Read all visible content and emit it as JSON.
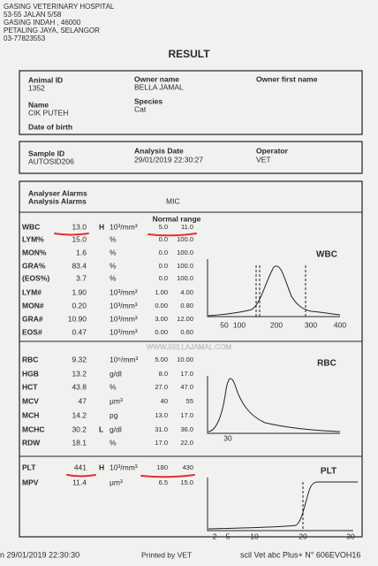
{
  "header": {
    "lines": [
      "GASING VETERINARY HOSPITAL",
      "53-55 JALAN 5/58",
      "GASING INDAH , 46000",
      "PETALING JAYA, SELANGOR",
      "03-77823553"
    ]
  },
  "title": "RESULT",
  "patient": {
    "animal_id_label": "Animal ID",
    "animal_id": "1352",
    "owner_name_label": "Owner name",
    "owner_name": "BELLA JAMAL",
    "owner_first_name_label": "Owner first name",
    "name_label": "Name",
    "name": "CIK PUTEH",
    "species_label": "Species",
    "species": "Cat",
    "dob_label": "Date of birth"
  },
  "sample": {
    "sample_id_label": "Sample ID",
    "sample_id": "AUTOSID206",
    "analysis_date_label": "Analysis Date",
    "analysis_date": "29/01/2019 22:30:27",
    "operator_label": "Operator",
    "operator": "VET"
  },
  "alarms": {
    "analyser_label": "Analyser Alarms",
    "analysis_label": "Analysis Alarms",
    "analysis_value": "MIC"
  },
  "results": {
    "normal_range_label": "Normal range",
    "rows": [
      {
        "name": "WBC",
        "value": "13.0",
        "flag": "H",
        "unit": "10³/mm³",
        "low": "5.0",
        "high": "11.0"
      },
      {
        "name": "LYM%",
        "value": "15.0",
        "unit": "%",
        "low": "0.0",
        "high": "100.0"
      },
      {
        "name": "MON%",
        "value": "1.6",
        "unit": "%",
        "low": "0.0",
        "high": "100.0"
      },
      {
        "name": "GRA%",
        "value": "83.4",
        "unit": "%",
        "low": "0.0",
        "high": "100.0"
      },
      {
        "name": "(EOS%)",
        "value": "3.7",
        "unit": "%",
        "low": "0.0",
        "high": "100.0"
      },
      {
        "name": "LYM#",
        "value": "1.90",
        "unit": "10³/mm³",
        "low": "1.00",
        "high": "4.00"
      },
      {
        "name": "MON#",
        "value": "0.20",
        "unit": "10³/mm³",
        "low": "0.00",
        "high": "0.80"
      },
      {
        "name": "GRA#",
        "value": "10.90",
        "unit": "10³/mm³",
        "low": "3.00",
        "high": "12.00"
      },
      {
        "name": "EOS#",
        "value": "0.47",
        "unit": "10³/mm³",
        "low": "0.00",
        "high": "0.60"
      },
      {
        "name": "RBC",
        "value": "9.32",
        "unit": "10⁶/mm³",
        "low": "5.00",
        "high": "10.00"
      },
      {
        "name": "HGB",
        "value": "13.2",
        "unit": "g/dl",
        "low": "8.0",
        "high": "17.0"
      },
      {
        "name": "HCT",
        "value": "43.8",
        "unit": "%",
        "low": "27.0",
        "high": "47.0"
      },
      {
        "name": "MCV",
        "value": "47",
        "unit": "µm³",
        "low": "40",
        "high": "55"
      },
      {
        "name": "MCH",
        "value": "14.2",
        "unit": "pg",
        "low": "13.0",
        "high": "17.0"
      },
      {
        "name": "MCHC",
        "value": "30.2",
        "flag": "L",
        "unit": "g/dl",
        "low": "31.0",
        "high": "36.0"
      },
      {
        "name": "RDW",
        "value": "18.1",
        "unit": "%",
        "low": "17.0",
        "high": "22.0"
      },
      {
        "name": "PLT",
        "value": "441",
        "flag": "H",
        "unit": "10³/mm³",
        "low": "180",
        "high": "430"
      },
      {
        "name": "MPV",
        "value": "11.4",
        "unit": "µm³",
        "low": "6.5",
        "high": "15.0"
      }
    ]
  },
  "histograms": [
    {
      "label": "WBC",
      "ticks": [
        "50",
        "100",
        "200",
        "300",
        "400"
      ]
    },
    {
      "label": "RBC",
      "ticks": [
        "30"
      ]
    },
    {
      "label": "PLT",
      "ticks": [
        "2",
        "5",
        "10",
        "20",
        "30"
      ]
    }
  ],
  "watermark": "WWW.BELLAJAMAL.COM",
  "footer": {
    "left": "n 29/01/2019 22:30:30",
    "center": "Printed by VET",
    "right": "scil Vet abc Plus+ N° 606EVOH16"
  }
}
